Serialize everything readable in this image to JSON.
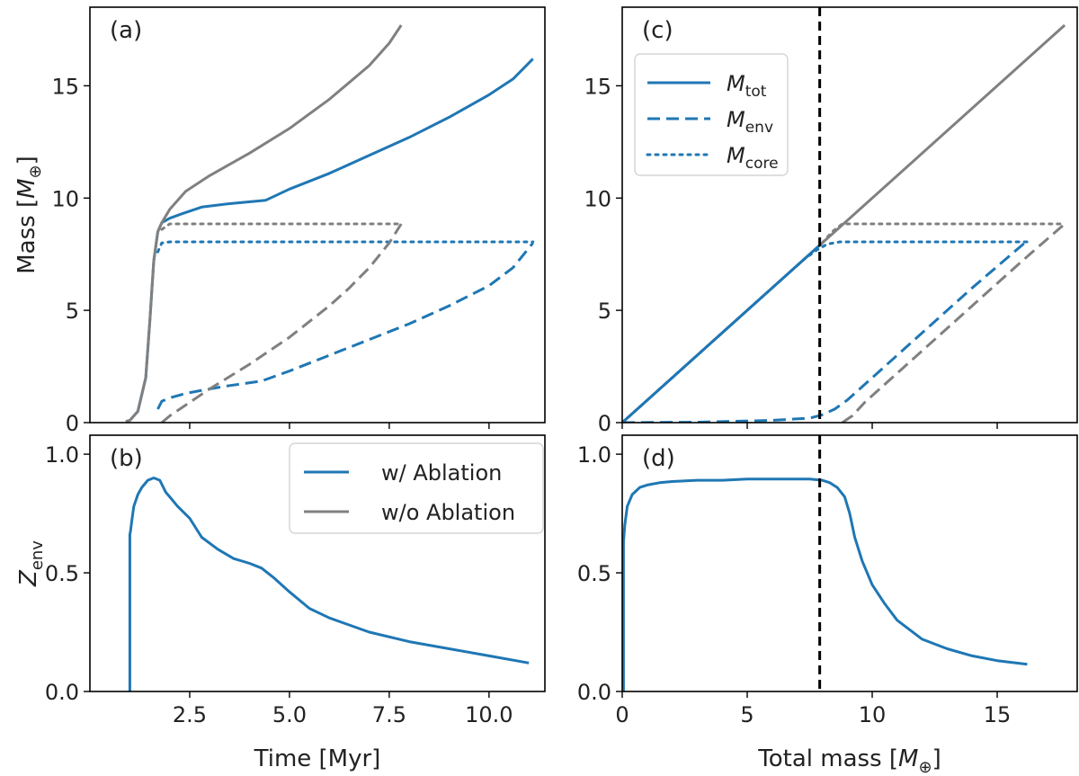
{
  "colors": {
    "with_ablation": "#1f77b4",
    "without_ablation": "#808080",
    "vline": "#000000"
  },
  "chart_data": [
    {
      "panel_label": "(a)",
      "type": "line",
      "xlabel": "",
      "ylabel_main": "Mass [",
      "ylabel_symbol": "M",
      "ylabel_sub": "⊕",
      "ylabel_close": "]",
      "xlim": [
        0.0,
        11.4
      ],
      "ylim": [
        0,
        18.5
      ],
      "xticks": [
        2.5,
        5.0,
        7.5,
        10.0
      ],
      "xtick_labels": [
        "",
        "",
        "",
        ""
      ],
      "yticks": [
        0,
        5,
        10,
        15
      ],
      "ytick_labels": [
        "0",
        "5",
        "10",
        "15"
      ],
      "series": [
        {
          "kind": "total",
          "case": "with_ablation",
          "style": "solid",
          "x": [
            0.9,
            1.0,
            1.2,
            1.4,
            1.5,
            1.6,
            1.7,
            1.8,
            2.0,
            2.3,
            2.8,
            3.5,
            4.4,
            5.0,
            6.0,
            7.0,
            8.0,
            9.0,
            10.0,
            10.6,
            11.1
          ],
          "y": [
            0.05,
            0.1,
            0.5,
            2.0,
            4.5,
            7.2,
            8.5,
            8.9,
            9.1,
            9.3,
            9.6,
            9.75,
            9.9,
            10.4,
            11.1,
            11.9,
            12.7,
            13.6,
            14.6,
            15.3,
            16.2
          ]
        },
        {
          "kind": "core",
          "case": "with_ablation",
          "style": "dotted",
          "x": [
            1.7,
            1.8,
            2.0,
            3.0,
            5.0,
            7.0,
            9.0,
            11.1
          ],
          "y": [
            7.6,
            8.0,
            8.05,
            8.05,
            8.05,
            8.05,
            8.05,
            8.05
          ]
        },
        {
          "kind": "env",
          "case": "with_ablation",
          "style": "dashed",
          "x": [
            1.7,
            1.8,
            2.0,
            2.4,
            3.0,
            3.5,
            4.3,
            5.0,
            6.0,
            7.0,
            8.0,
            9.0,
            10.0,
            10.6,
            11.1
          ],
          "y": [
            0.6,
            0.95,
            1.1,
            1.3,
            1.5,
            1.65,
            1.85,
            2.3,
            3.0,
            3.7,
            4.4,
            5.2,
            6.1,
            6.9,
            8.0
          ]
        },
        {
          "kind": "total",
          "case": "without_ablation",
          "style": "solid",
          "x": [
            0.9,
            1.0,
            1.2,
            1.4,
            1.5,
            1.6,
            1.7,
            1.8,
            2.0,
            2.4,
            3.0,
            4.0,
            5.0,
            6.0,
            7.0,
            7.5,
            7.8
          ],
          "y": [
            0.05,
            0.1,
            0.5,
            2.0,
            4.5,
            7.2,
            8.5,
            8.9,
            9.5,
            10.3,
            11.0,
            12.0,
            13.1,
            14.4,
            15.9,
            16.9,
            17.7
          ]
        },
        {
          "kind": "core",
          "case": "without_ablation",
          "style": "dotted",
          "x": [
            1.8,
            2.0,
            3.0,
            5.0,
            7.0,
            7.8
          ],
          "y": [
            8.6,
            8.85,
            8.85,
            8.85,
            8.85,
            8.85
          ]
        },
        {
          "kind": "env",
          "case": "without_ablation",
          "style": "dashed",
          "x": [
            1.8,
            2.0,
            2.5,
            3.0,
            4.0,
            5.0,
            6.0,
            6.5,
            7.0,
            7.5,
            7.8
          ],
          "y": [
            0.0,
            0.3,
            0.9,
            1.5,
            2.6,
            3.8,
            5.2,
            6.0,
            6.9,
            8.0,
            8.85
          ]
        }
      ]
    },
    {
      "panel_label": "(b)",
      "type": "line",
      "xlabel": "Time [Myr]",
      "ylabel_main": "Z",
      "ylabel_sub": "env",
      "xlim": [
        0.0,
        11.4
      ],
      "ylim": [
        0,
        1.08
      ],
      "xticks": [
        2.5,
        5.0,
        7.5,
        10.0
      ],
      "xtick_labels": [
        "2.5",
        "5.0",
        "7.5",
        "10.0"
      ],
      "yticks": [
        0.0,
        0.5,
        1.0
      ],
      "ytick_labels": [
        "0.0",
        "0.5",
        "1.0"
      ],
      "legend": {
        "position": "top-right",
        "entries": [
          "w/ Ablation",
          "w/o Ablation"
        ]
      },
      "series": [
        {
          "case": "with_ablation",
          "style": "solid",
          "x": [
            1.0,
            1.0,
            1.02,
            1.05,
            1.1,
            1.2,
            1.3,
            1.45,
            1.6,
            1.75,
            1.9,
            2.0,
            2.2,
            2.5,
            2.8,
            3.2,
            3.6,
            4.0,
            4.3,
            4.6,
            5.0,
            5.5,
            6.0,
            7.0,
            8.0,
            9.0,
            10.0,
            11.0
          ],
          "y": [
            0.0,
            0.66,
            0.68,
            0.72,
            0.78,
            0.83,
            0.86,
            0.89,
            0.9,
            0.89,
            0.84,
            0.82,
            0.78,
            0.73,
            0.65,
            0.6,
            0.56,
            0.54,
            0.52,
            0.48,
            0.42,
            0.35,
            0.31,
            0.25,
            0.21,
            0.18,
            0.15,
            0.12
          ]
        }
      ]
    },
    {
      "panel_label": "(c)",
      "type": "line",
      "xlabel": "",
      "xlim": [
        0.0,
        18.2
      ],
      "ylim": [
        0,
        18.5
      ],
      "xticks": [
        0,
        5,
        10,
        15
      ],
      "xtick_labels": [
        "",
        "",
        "",
        ""
      ],
      "yticks": [
        0,
        5,
        10,
        15
      ],
      "ytick_labels": [
        "0",
        "5",
        "10",
        "15"
      ],
      "vline_x": 7.9,
      "legend": {
        "position": "top-left",
        "entries": [
          {
            "symbol": "M",
            "sub": "tot",
            "style": "solid"
          },
          {
            "symbol": "M",
            "sub": "env",
            "style": "dashed"
          },
          {
            "symbol": "M",
            "sub": "core",
            "style": "dotted"
          }
        ]
      },
      "series": [
        {
          "kind": "total",
          "case": "without_ablation",
          "style": "solid",
          "x": [
            0.0,
            17.7
          ],
          "y": [
            0.0,
            17.7
          ]
        },
        {
          "kind": "total",
          "case": "with_ablation",
          "style": "solid",
          "x": [
            0.0,
            8.0
          ],
          "y": [
            0.0,
            8.0
          ]
        },
        {
          "kind": "core",
          "case": "with_ablation",
          "style": "dotted",
          "x": [
            0.0,
            5.0,
            7.3,
            7.8,
            8.2,
            8.7,
            10.0,
            13.0,
            16.2
          ],
          "y": [
            0.0,
            5.0,
            7.3,
            7.7,
            7.95,
            8.05,
            8.05,
            8.05,
            8.05
          ]
        },
        {
          "kind": "core",
          "case": "without_ablation",
          "style": "dotted",
          "x": [
            8.0,
            8.4,
            8.8,
            10.0,
            14.0,
            17.7
          ],
          "y": [
            8.0,
            8.5,
            8.85,
            8.85,
            8.85,
            8.85
          ]
        },
        {
          "kind": "env",
          "case": "with_ablation",
          "style": "dashed",
          "x": [
            0.0,
            3.0,
            6.0,
            7.5,
            8.0,
            8.5,
            9.0,
            9.3,
            10.0,
            12.0,
            14.0,
            16.2
          ],
          "y": [
            0.0,
            0.02,
            0.1,
            0.2,
            0.35,
            0.6,
            1.0,
            1.3,
            2.0,
            4.0,
            6.0,
            8.1
          ]
        },
        {
          "kind": "env",
          "case": "without_ablation",
          "style": "dashed",
          "x": [
            8.8,
            9.2,
            9.7,
            10.0,
            12.0,
            14.0,
            16.0,
            17.7
          ],
          "y": [
            0.0,
            0.3,
            0.9,
            1.2,
            3.2,
            5.2,
            7.2,
            8.85
          ]
        }
      ]
    },
    {
      "panel_label": "(d)",
      "type": "line",
      "xlabel_main": "Total mass [",
      "xlabel_symbol": "M",
      "xlabel_sub": "⊕",
      "xlabel_close": "]",
      "xlim": [
        0.0,
        18.2
      ],
      "ylim": [
        0,
        1.08
      ],
      "xticks": [
        0,
        5,
        10,
        15
      ],
      "xtick_labels": [
        "0",
        "5",
        "10",
        "15"
      ],
      "yticks": [
        0.0,
        0.5,
        1.0
      ],
      "ytick_labels": [
        "0.0",
        "0.5",
        "1.0"
      ],
      "vline_x": 7.9,
      "series": [
        {
          "case": "with_ablation",
          "style": "solid",
          "x": [
            0.05,
            0.05,
            0.1,
            0.2,
            0.4,
            0.7,
            1.0,
            1.5,
            2.0,
            3.0,
            4.0,
            5.0,
            6.0,
            7.0,
            7.5,
            8.0,
            8.3,
            8.6,
            8.9,
            9.1,
            9.3,
            9.6,
            10.0,
            10.5,
            11.0,
            12.0,
            13.0,
            14.0,
            15.0,
            16.2
          ],
          "y": [
            0.0,
            0.63,
            0.7,
            0.78,
            0.83,
            0.86,
            0.87,
            0.88,
            0.885,
            0.89,
            0.89,
            0.895,
            0.895,
            0.895,
            0.895,
            0.89,
            0.88,
            0.86,
            0.82,
            0.75,
            0.65,
            0.55,
            0.45,
            0.37,
            0.3,
            0.22,
            0.18,
            0.15,
            0.13,
            0.115
          ]
        }
      ]
    }
  ]
}
